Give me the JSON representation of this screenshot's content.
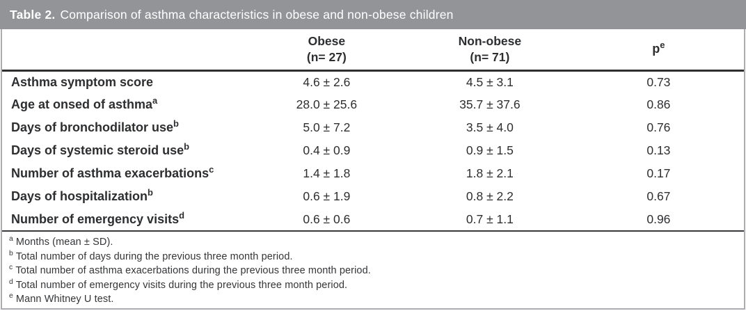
{
  "table": {
    "title_label": "Table 2.",
    "title_text": "Comparison of asthma characteristics in obese and non-obese children",
    "columns": [
      {
        "name": "Obese",
        "n": "(n= 27)"
      },
      {
        "name": "Non-obese",
        "n": "(n= 71)"
      },
      {
        "name": "p",
        "sup": "e"
      }
    ],
    "rows": [
      {
        "label": "Asthma symptom score",
        "sup": "",
        "obese": "4.6 ± 2.6",
        "non_obese": "4.5 ± 3.1",
        "p": "0.73"
      },
      {
        "label": "Age at onsed of asthma",
        "sup": "a",
        "obese": "28.0 ± 25.6",
        "non_obese": "35.7 ± 37.6",
        "p": "0.86"
      },
      {
        "label": "Days of bronchodilator use",
        "sup": "b",
        "obese": "5.0 ± 7.2",
        "non_obese": "3.5 ± 4.0",
        "p": "0.76"
      },
      {
        "label": "Days of systemic steroid use",
        "sup": "b",
        "obese": "0.4 ± 0.9",
        "non_obese": "0.9 ± 1.5",
        "p": "0.13"
      },
      {
        "label": "Number of asthma exacerbations",
        "sup": "c",
        "obese": "1.4 ± 1.8",
        "non_obese": "1.8 ± 2.1",
        "p": "0.17"
      },
      {
        "label": "Days of hospitalization",
        "sup": "b",
        "obese": "0.6 ± 1.9",
        "non_obese": "0.8 ± 2.2",
        "p": "0.67"
      },
      {
        "label": "Number of emergency visits",
        "sup": "d",
        "obese": "0.6 ± 0.6",
        "non_obese": "0.7 ± 1.1",
        "p": "0.96"
      }
    ],
    "footnotes": [
      {
        "sup": "a",
        "text": "Months (mean ± SD)."
      },
      {
        "sup": "b",
        "text": "Total number of days during the previous three month period."
      },
      {
        "sup": "c",
        "text": "Total number of asthma exacerbations during the previous three month period."
      },
      {
        "sup": "d",
        "text": "Total number of emergency visits during the previous three month period."
      },
      {
        "sup": "e",
        "text": "Mann Whitney U test."
      }
    ],
    "colors": {
      "title_bar_bg": "#929497",
      "title_text": "#ffffff",
      "panel_border": "#abadb0",
      "heavy_rule": "#2e2e2e",
      "text": "#2d2e30"
    }
  }
}
